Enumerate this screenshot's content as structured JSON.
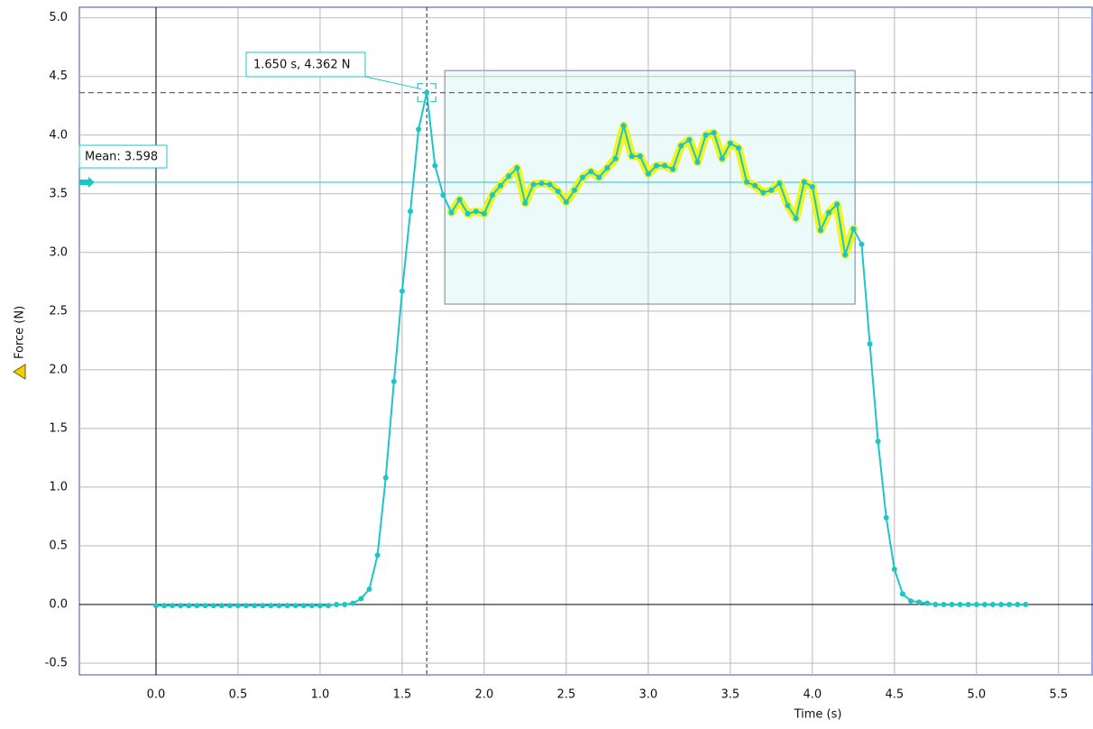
{
  "chart_data": {
    "type": "line",
    "x_label": "Time (s)",
    "y_label": "Force (N)",
    "x": [
      0,
      0.05,
      0.1,
      0.15,
      0.2,
      0.25,
      0.3,
      0.35,
      0.4,
      0.45,
      0.5,
      0.55,
      0.6,
      0.65,
      0.7,
      0.75,
      0.8,
      0.85,
      0.9,
      0.95,
      1,
      1.05,
      1.1,
      1.15,
      1.2,
      1.25,
      1.3,
      1.35,
      1.4,
      1.45,
      1.5,
      1.55,
      1.6,
      1.65,
      1.7,
      1.75,
      1.8,
      1.85,
      1.9,
      1.95,
      2,
      2.05,
      2.1,
      2.15,
      2.2,
      2.25,
      2.3,
      2.35,
      2.4,
      2.45,
      2.5,
      2.55,
      2.6,
      2.65,
      2.7,
      2.75,
      2.8,
      2.85,
      2.9,
      2.95,
      3,
      3.05,
      3.1,
      3.15,
      3.2,
      3.25,
      3.3,
      3.35,
      3.4,
      3.45,
      3.5,
      3.55,
      3.6,
      3.65,
      3.7,
      3.75,
      3.8,
      3.85,
      3.9,
      3.95,
      4,
      4.05,
      4.1,
      4.15,
      4.2,
      4.25,
      4.3,
      4.35,
      4.4,
      4.45,
      4.5,
      4.55,
      4.6,
      4.65,
      4.7,
      4.75,
      4.8,
      4.85,
      4.9,
      4.95,
      5,
      5.05,
      5.1,
      5.15,
      5.2,
      5.25,
      5.3
    ],
    "values": [
      -0.01,
      -0.01,
      -0.01,
      -0.01,
      -0.01,
      -0.01,
      -0.01,
      -0.01,
      -0.01,
      -0.01,
      -0.01,
      -0.01,
      -0.01,
      -0.01,
      -0.01,
      -0.01,
      -0.01,
      -0.01,
      -0.01,
      -0.01,
      -0.01,
      -0.01,
      0,
      0,
      0.01,
      0.05,
      0.13,
      0.42,
      1.08,
      1.9,
      2.67,
      3.35,
      4.05,
      4.362,
      3.74,
      3.49,
      3.34,
      3.45,
      3.33,
      3.35,
      3.33,
      3.49,
      3.57,
      3.65,
      3.72,
      3.42,
      3.58,
      3.59,
      3.58,
      3.52,
      3.43,
      3.53,
      3.64,
      3.69,
      3.64,
      3.72,
      3.8,
      4.08,
      3.82,
      3.82,
      3.67,
      3.74,
      3.74,
      3.71,
      3.91,
      3.96,
      3.77,
      4,
      4.02,
      3.8,
      3.93,
      3.89,
      3.6,
      3.57,
      3.51,
      3.53,
      3.59,
      3.4,
      3.29,
      3.6,
      3.56,
      3.19,
      3.34,
      3.41,
      2.98,
      3.2,
      3.07,
      2.22,
      1.39,
      0.74,
      0.3,
      0.09,
      0.03,
      0.02,
      0.01,
      0,
      0,
      0,
      0,
      0,
      0,
      0,
      0,
      0,
      0,
      0,
      0
    ],
    "color": "#1cc6c8",
    "highlight_color": "#f0f51c",
    "xlim": [
      -0.467,
      5.71
    ],
    "ylim": [
      -0.6,
      5.09
    ],
    "xticks": [
      {
        "value": 0,
        "label": "0.0"
      },
      0.5,
      {
        "value": 1,
        "label": "1.0"
      },
      1.5,
      {
        "value": 2,
        "label": "2.0"
      },
      2.5,
      {
        "value": 3,
        "label": "3.0"
      },
      3.5,
      {
        "value": 4,
        "label": "4.0"
      },
      4.5,
      {
        "value": 5,
        "label": "5.0"
      },
      5.5
    ],
    "yticks": [
      -0.5,
      {
        "value": 0,
        "label": "0.0"
      },
      0.5,
      {
        "value": 1,
        "label": "1.0"
      },
      1.5,
      {
        "value": 2,
        "label": "2.0"
      },
      2.5,
      {
        "value": 3,
        "label": "3.0"
      },
      3.5,
      {
        "value": 4,
        "label": "4.0"
      },
      4.5,
      {
        "value": 5,
        "label": "5.0"
      }
    ],
    "grid": true,
    "selection": {
      "xlim": [
        1.76,
        4.26
      ],
      "ylim": [
        2.56,
        4.55
      ]
    },
    "mean": 3.598,
    "mean_label": "Mean: 3.598",
    "cursor": {
      "x": 1.65,
      "y": 4.362,
      "label": "1.650 s, 4.362 N"
    }
  }
}
